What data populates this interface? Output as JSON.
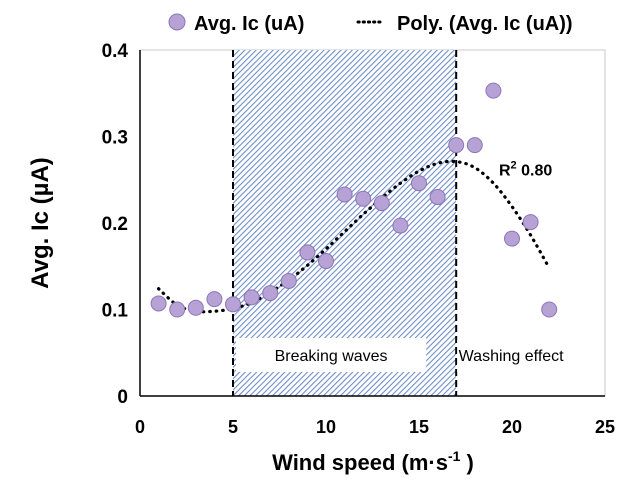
{
  "chart_data": {
    "type": "scatter",
    "xlabel": "Wind speed (m·s",
    "xlabel_sup": "-1",
    "xlabel_end": " )",
    "ylabel": "Avg. Ic (µA)",
    "xlim": [
      0,
      25
    ],
    "ylim": [
      0,
      0.4
    ],
    "x_ticks": [
      "0",
      "5",
      "10",
      "15",
      "20",
      "25"
    ],
    "y_ticks": [
      "0",
      "0.1",
      "0.2",
      "0.3",
      "0.4"
    ],
    "grid": false,
    "legend_position": "top",
    "series": [
      {
        "name": "Avg. Ic (uA)",
        "kind": "scatter",
        "color": "#b6a2d4",
        "x": [
          1,
          2,
          3,
          4,
          5,
          6,
          7,
          8,
          9,
          10,
          11,
          12,
          13,
          14,
          15,
          16,
          17,
          18,
          19,
          20,
          21,
          22
        ],
        "y": [
          0.107,
          0.1,
          0.102,
          0.112,
          0.106,
          0.114,
          0.119,
          0.133,
          0.166,
          0.156,
          0.233,
          0.228,
          0.223,
          0.197,
          0.246,
          0.23,
          0.29,
          0.29,
          0.353,
          0.182,
          0.201,
          0.1
        ]
      },
      {
        "name": "Poly. (Avg. Ic (uA))",
        "kind": "line",
        "style": "dotted",
        "color": "#000000",
        "x": [
          1,
          2,
          3,
          4,
          5,
          6,
          7,
          8,
          9,
          10,
          11,
          12,
          13,
          14,
          15,
          16,
          17,
          18,
          19,
          20,
          21,
          22
        ],
        "y": [
          0.124,
          0.105,
          0.098,
          0.098,
          0.101,
          0.108,
          0.12,
          0.134,
          0.151,
          0.17,
          0.19,
          0.21,
          0.229,
          0.246,
          0.26,
          0.269,
          0.271,
          0.264,
          0.246,
          0.219,
          0.186,
          0.148
        ]
      }
    ],
    "regions": [
      {
        "label": "Breaking waves",
        "x_start": 5,
        "x_end": 17,
        "fill": "#5b7fbf"
      },
      {
        "label": "Washing effect",
        "x_start": 17,
        "x_end": 22.8
      }
    ],
    "annotation": {
      "text": "R",
      "sup": "2",
      "value": " 0.80",
      "x": 19.3,
      "y": 0.255
    }
  }
}
